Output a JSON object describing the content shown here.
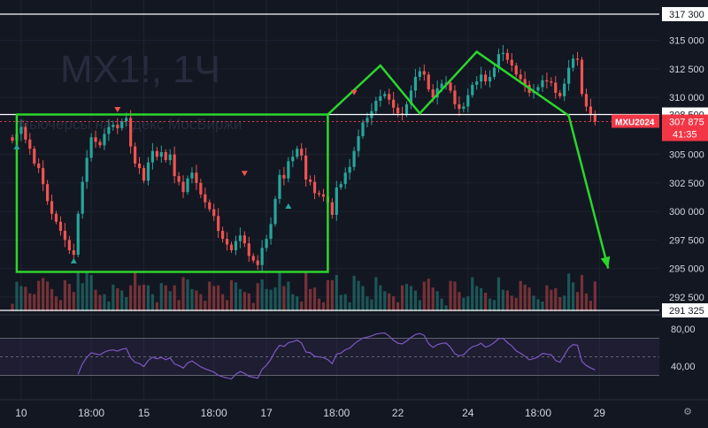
{
  "watermark": {
    "symbol": "MX1!, 1Ч",
    "description": "Фьючерсы на индекс МосБиржи"
  },
  "colors": {
    "background": "#131722",
    "up": "#26a69a",
    "down": "#ef5350",
    "drawing": "#2bd62b",
    "rsi_line": "#7e57c2",
    "tag_red": "#f23645"
  },
  "chart_data": {
    "type": "candlestick",
    "symbol": "MX1!",
    "interval": "1Ч",
    "price_axis": {
      "ylim": [
        291325,
        317300
      ],
      "ticks": [
        {
          "value": 315000,
          "label": "315 000"
        },
        {
          "value": 312500,
          "label": "312 500"
        },
        {
          "value": 310000,
          "label": "310 000"
        },
        {
          "value": 305000,
          "label": "305 000"
        },
        {
          "value": 302500,
          "label": "302 500"
        },
        {
          "value": 300000,
          "label": "300 000"
        },
        {
          "value": 297500,
          "label": "297 500"
        },
        {
          "value": 295000,
          "label": "295 000"
        },
        {
          "value": 292500,
          "label": "292 500"
        }
      ],
      "marked_levels": [
        {
          "value": 317300,
          "label": "317 300"
        },
        {
          "value": 308500,
          "label": "308 500"
        },
        {
          "value": 291325,
          "label": "291 325"
        }
      ],
      "last_price": {
        "value": 307875,
        "label": "307 875",
        "symbol": "MXU2024",
        "countdown": "41:35"
      }
    },
    "time_axis": {
      "labels": [
        "10",
        "18:00",
        "15",
        "18:00",
        "17",
        "18:00",
        "22",
        "24",
        "18:00",
        "29"
      ],
      "label_bars": [
        2,
        18,
        30,
        46,
        58,
        74,
        88,
        104,
        120,
        134
      ]
    },
    "bar_count": 134,
    "close": [
      306200,
      306800,
      307400,
      306300,
      305500,
      304200,
      303800,
      302400,
      300900,
      299800,
      299100,
      298300,
      297500,
      296600,
      296200,
      299800,
      302600,
      304700,
      306500,
      306100,
      305800,
      306800,
      307400,
      307600,
      307300,
      307900,
      308200,
      305700,
      304200,
      303800,
      302700,
      304300,
      305300,
      304800,
      305200,
      304500,
      305000,
      303100,
      302600,
      301700,
      302900,
      303400,
      302500,
      301500,
      300800,
      300200,
      299600,
      298300,
      297600,
      297100,
      296600,
      297400,
      297900,
      297200,
      296100,
      295700,
      295300,
      296800,
      297600,
      298900,
      301100,
      303200,
      302900,
      304400,
      304800,
      305500,
      304900,
      302800,
      302600,
      301600,
      301500,
      301300,
      300800,
      299700,
      302100,
      302400,
      303400,
      303900,
      305300,
      306600,
      307800,
      308200,
      308800,
      309700,
      310100,
      310300,
      309800,
      309100,
      308600,
      308500,
      309400,
      310600,
      311800,
      312300,
      312000,
      310700,
      310000,
      310800,
      311200,
      311300,
      310600,
      309400,
      309000,
      309200,
      310200,
      311100,
      311400,
      312000,
      311400,
      311800,
      312600,
      313800,
      313900,
      313300,
      312800,
      312000,
      311600,
      311100,
      310400,
      310600,
      310900,
      311500,
      311400,
      311300,
      310400,
      310100,
      311200,
      312600,
      313400,
      313300,
      310300,
      309200,
      308500,
      307875
    ],
    "annotations": {
      "range_box": {
        "bar_start": 1,
        "bar_end": 72,
        "price_top": 308500,
        "price_bottom": 294700
      },
      "double_top": [
        {
          "bar": 72,
          "price": 308500
        },
        {
          "bar": 84,
          "price": 312800
        },
        {
          "bar": 93,
          "price": 308600
        },
        {
          "bar": 106,
          "price": 314000
        },
        {
          "bar": 127,
          "price": 308400
        }
      ],
      "forecast_arrow": {
        "from": {
          "bar": 127,
          "price": 308400
        },
        "to": {
          "bar": 136,
          "price": 295000
        }
      },
      "signals": [
        {
          "bar": 1,
          "dir": "up",
          "price": 305600
        },
        {
          "bar": 14,
          "dir": "up",
          "price": 295600
        },
        {
          "bar": 24,
          "dir": "down",
          "price": 309000
        },
        {
          "bar": 53,
          "dir": "down",
          "price": 303400
        },
        {
          "bar": 63,
          "dir": "up",
          "price": 300400
        },
        {
          "bar": 78,
          "dir": "down",
          "price": 310500
        }
      ]
    },
    "rsi": {
      "ticks": [
        {
          "value": 80,
          "label": "80,00"
        },
        {
          "value": 40,
          "label": "40,00"
        }
      ],
      "bands": [
        70,
        30
      ]
    }
  },
  "ui": {
    "settings_icon": "gear-icon"
  }
}
